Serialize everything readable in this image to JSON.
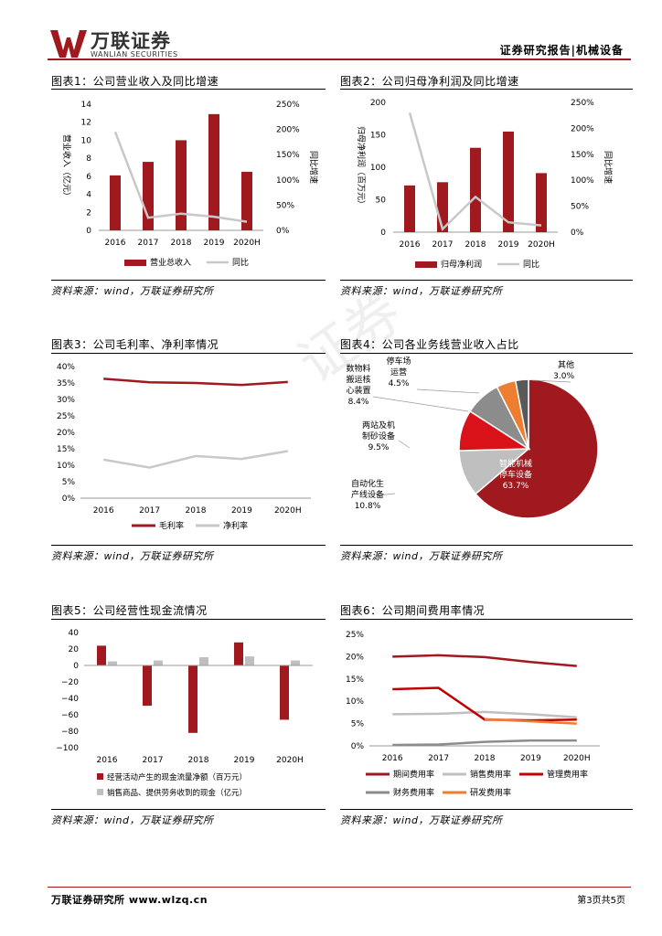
{
  "header": {
    "logo_cn": "万联证券",
    "logo_en": "WANLIAN SECURITIES",
    "right_text": "证券研究报告|机械设备"
  },
  "watermark": "证券",
  "figures": {
    "fig1_title": "图表1：公司营业收入及同比增速",
    "fig2_title": "图表2：公司归母净利润及同比增速",
    "fig3_title": "图表3：公司毛利率、净利率情况",
    "fig4_title": "图表4：公司各业务线营业收入占比",
    "fig5_title": "图表5：公司经营性现金流情况",
    "fig6_title": "图表6：公司期间费用率情况",
    "source": "资料来源：wind，万联证券研究所"
  },
  "footer": {
    "left": "万联证券研究所 www.wlzq.cn",
    "right": "第3页共5页"
  },
  "chart_data": [
    {
      "id": "fig1",
      "type": "bar",
      "categories": [
        "2016",
        "2017",
        "2018",
        "2019",
        "2020H"
      ],
      "series": [
        {
          "name": "营业总收入",
          "type": "bar",
          "axis": "left",
          "values": [
            6.1,
            7.6,
            10.0,
            12.9,
            6.5
          ],
          "color": "#a0191e"
        },
        {
          "name": "同比",
          "type": "line",
          "axis": "right",
          "values": [
            1.95,
            0.25,
            0.33,
            0.27,
            0.17
          ],
          "color": "#c8c8c8"
        }
      ],
      "ylabel": "营业收入（亿元）",
      "ylabel_right": "同比增速",
      "ylim": [
        0,
        14
      ],
      "yticks": [
        "0",
        "2",
        "4",
        "6",
        "8",
        "10",
        "12",
        "14"
      ],
      "ylim_right": [
        0,
        2.5
      ],
      "yticks_right": [
        "0%",
        "50%",
        "100%",
        "150%",
        "200%",
        "250%"
      ]
    },
    {
      "id": "fig2",
      "type": "bar",
      "categories": [
        "2016",
        "2017",
        "2018",
        "2019",
        "2020H"
      ],
      "series": [
        {
          "name": "归母净利润",
          "type": "bar",
          "axis": "left",
          "values": [
            72,
            77,
            130,
            155,
            91
          ],
          "color": "#a0191e"
        },
        {
          "name": "同比",
          "type": "line",
          "axis": "right",
          "values": [
            2.3,
            0.06,
            0.68,
            0.19,
            0.13
          ],
          "color": "#c8c8c8"
        }
      ],
      "ylabel": "归母净利润（百万元）",
      "ylabel_right": "同比增速",
      "ylim": [
        0,
        200
      ],
      "yticks": [
        "0",
        "50",
        "100",
        "150",
        "200"
      ],
      "ylim_right": [
        0,
        2.5
      ],
      "yticks_right": [
        "0%",
        "50%",
        "100%",
        "150%",
        "200%",
        "250%"
      ]
    },
    {
      "id": "fig3",
      "type": "line",
      "categories": [
        "2016",
        "2017",
        "2018",
        "2019",
        "2020H"
      ],
      "series": [
        {
          "name": "毛利率",
          "values": [
            0.363,
            0.352,
            0.35,
            0.344,
            0.353
          ],
          "color": "#a0191e"
        },
        {
          "name": "净利率",
          "values": [
            0.117,
            0.093,
            0.128,
            0.119,
            0.143
          ],
          "color": "#c8c8c8"
        }
      ],
      "ylim": [
        0,
        0.4
      ],
      "yticks": [
        "0%",
        "5%",
        "10%",
        "15%",
        "20%",
        "25%",
        "30%",
        "35%",
        "40%"
      ]
    },
    {
      "id": "fig4",
      "type": "pie",
      "slices": [
        {
          "label": "智能机械停车设备",
          "pct": "63.7%",
          "value": 63.7,
          "color": "#a0191e"
        },
        {
          "label": "自动化生产线设备",
          "pct": "10.8%",
          "value": 10.8,
          "color": "#bfbfbf"
        },
        {
          "label": "两站及机制砂设备",
          "pct": "9.5%",
          "value": 9.5,
          "color": "#d9121a"
        },
        {
          "label": "数物料搬运核心装置",
          "pct": "8.4%",
          "value": 8.4,
          "color": "#8c8c8c"
        },
        {
          "label": "停车场运营",
          "pct": "4.5%",
          "value": 4.5,
          "color": "#ed7d31"
        },
        {
          "label": "其他",
          "pct": "3.0%",
          "value": 3.0,
          "color": "#595959"
        }
      ],
      "label_lines": {
        "s0": [
          "智能机械",
          "停车设备",
          "63.7%"
        ],
        "s1": [
          "自动化生",
          "产线设备",
          "10.8%"
        ],
        "s2": [
          "两站及机",
          "制砂设备",
          "9.5%"
        ],
        "s3": [
          "数物料",
          "搬运核",
          "心装置",
          "8.4%"
        ],
        "s4": [
          "停车场",
          "运营",
          "4.5%"
        ],
        "s5": [
          "其他",
          "3.0%"
        ]
      }
    },
    {
      "id": "fig5",
      "type": "bar",
      "categories": [
        "2016",
        "2017",
        "2018",
        "2019",
        "2020H"
      ],
      "series": [
        {
          "name": "经营活动产生的现金流量净额（百万元）",
          "values": [
            24,
            -49,
            -82,
            28,
            -66
          ],
          "color": "#a0191e"
        },
        {
          "name": "销售商品、提供劳务收到的现金（亿元）",
          "values": [
            5,
            6,
            10,
            11,
            6
          ],
          "color": "#bfbfbf"
        }
      ],
      "ylim": [
        -100,
        40
      ],
      "yticks": [
        "−100",
        "−80",
        "−60",
        "−40",
        "−20",
        "0",
        "20",
        "40"
      ]
    },
    {
      "id": "fig6",
      "type": "line",
      "categories": [
        "2016",
        "2017",
        "2018",
        "2019",
        "2020H"
      ],
      "series": [
        {
          "name": "期间费用率",
          "values": [
            0.2,
            0.203,
            0.199,
            0.188,
            0.179
          ],
          "color": "#a0191e"
        },
        {
          "name": "销售费用率",
          "values": [
            0.071,
            0.072,
            0.076,
            0.071,
            0.064
          ],
          "color": "#bfbfbf"
        },
        {
          "name": "管理费用率",
          "values": [
            0.127,
            0.13,
            0.059,
            0.057,
            0.059
          ],
          "color": "#c00000"
        },
        {
          "name": "财务费用率",
          "values": [
            0.002,
            0.003,
            0.009,
            0.012,
            0.012
          ],
          "color": "#8c8c8c"
        },
        {
          "name": "研发费用率",
          "values": [
            null,
            null,
            0.06,
            0.055,
            0.05
          ],
          "color": "#ed7d31"
        }
      ],
      "ylim": [
        0,
        0.25
      ],
      "yticks": [
        "0%",
        "5%",
        "10%",
        "15%",
        "20%",
        "25%"
      ]
    }
  ]
}
